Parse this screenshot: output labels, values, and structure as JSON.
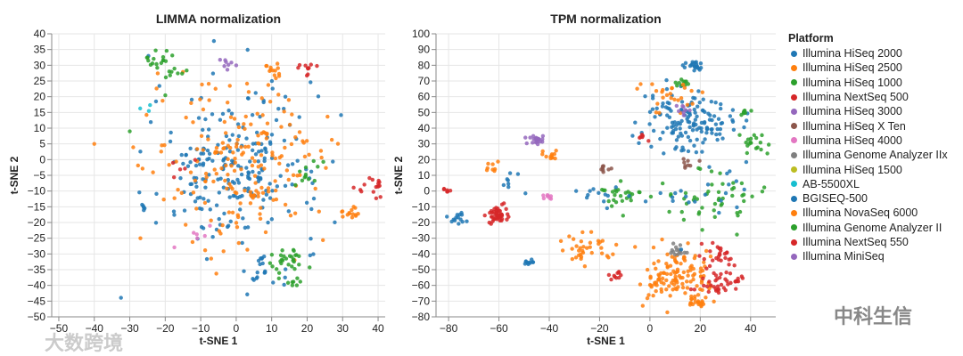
{
  "chart_data": [
    {
      "type": "scatter",
      "title": "LIMMA normalization",
      "xlabel": "t-SNE 1",
      "ylabel": "t-SNE 2",
      "xlim": [
        -52,
        42
      ],
      "ylim": [
        -50,
        40
      ],
      "xticks": [
        -50,
        -40,
        -30,
        -20,
        -10,
        0,
        10,
        20,
        30,
        40
      ],
      "yticks": [
        40,
        35,
        30,
        25,
        20,
        15,
        10,
        5,
        0,
        -5,
        -10,
        -15,
        -20,
        -25,
        -30,
        -35,
        -40,
        -45,
        -50
      ],
      "grid": true,
      "clusters": [
        {
          "s": 0,
          "cx": 0,
          "cy": -2,
          "sd": 12,
          "n": 230
        },
        {
          "s": 1,
          "cx": 2,
          "cy": -2,
          "sd": 13,
          "n": 200
        },
        {
          "s": 2,
          "cx": -20,
          "cy": 30,
          "sd": 3,
          "n": 25
        },
        {
          "s": 1,
          "cx": 11,
          "cy": 28,
          "sd": 2,
          "n": 14
        },
        {
          "s": 3,
          "cx": 20,
          "cy": 28,
          "sd": 1.5,
          "n": 10
        },
        {
          "s": 1,
          "cx": 32,
          "cy": -17,
          "sd": 1.5,
          "n": 14
        },
        {
          "s": 3,
          "cx": 38,
          "cy": -9,
          "sd": 2,
          "n": 16
        },
        {
          "s": 2,
          "cx": 14,
          "cy": -32,
          "sd": 3,
          "n": 30
        },
        {
          "s": 0,
          "cx": 7,
          "cy": -35,
          "sd": 3,
          "n": 20
        },
        {
          "s": 4,
          "cx": -2,
          "cy": 31,
          "sd": 1.2,
          "n": 8
        },
        {
          "s": 2,
          "cx": 17,
          "cy": -39,
          "sd": 0.8,
          "n": 6
        },
        {
          "s": 0,
          "cx": -26,
          "cy": -15,
          "sd": 1,
          "n": 5
        },
        {
          "s": 6,
          "cx": -10,
          "cy": -27,
          "sd": 3,
          "n": 6
        },
        {
          "s": 9,
          "cx": -25,
          "cy": 17,
          "sd": 1,
          "n": 3
        },
        {
          "s": 2,
          "cx": 21,
          "cy": -5,
          "sd": 3,
          "n": 12
        },
        {
          "s": 3,
          "cx": -17,
          "cy": -2,
          "sd": 2,
          "n": 5
        }
      ],
      "outliers": [
        [
          -40,
          5,
          1
        ],
        [
          -53,
          -44,
          1
        ],
        [
          -30,
          9,
          2
        ],
        [
          -27,
          -25,
          1
        ]
      ]
    },
    {
      "type": "scatter",
      "title": "TPM normalization",
      "xlabel": "t-SNE 1",
      "ylabel": "t-SNE 2",
      "xlim": [
        -85,
        50
      ],
      "ylim": [
        -80,
        100
      ],
      "xticks": [
        -80,
        -60,
        -40,
        -20,
        0,
        20,
        40
      ],
      "yticks": [
        100,
        90,
        80,
        70,
        60,
        50,
        40,
        30,
        20,
        10,
        0,
        -10,
        -20,
        -30,
        -40,
        -50,
        -60,
        -70,
        -80
      ],
      "grid": true,
      "clusters": [
        {
          "s": 0,
          "cx": 15,
          "cy": 45,
          "sd": 9,
          "n": 140
        },
        {
          "s": 0,
          "cx": 17,
          "cy": 80,
          "sd": 2,
          "n": 20
        },
        {
          "s": 2,
          "cx": 12,
          "cy": 68,
          "sd": 1.5,
          "n": 10
        },
        {
          "s": 2,
          "cx": 42,
          "cy": 32,
          "sd": 3,
          "n": 18
        },
        {
          "s": 2,
          "cx": 38,
          "cy": 50,
          "sd": 1,
          "n": 8
        },
        {
          "s": 1,
          "cx": -40,
          "cy": 23,
          "sd": 1.5,
          "n": 12
        },
        {
          "s": 4,
          "cx": -45,
          "cy": 32,
          "sd": 2,
          "n": 20
        },
        {
          "s": 3,
          "cx": -60,
          "cy": -15,
          "sd": 2.5,
          "n": 45
        },
        {
          "s": 0,
          "cx": -77,
          "cy": -18,
          "sd": 2,
          "n": 14
        },
        {
          "s": 3,
          "cx": -81,
          "cy": 1,
          "sd": 1,
          "n": 6
        },
        {
          "s": 1,
          "cx": 10,
          "cy": -55,
          "sd": 8,
          "n": 120
        },
        {
          "s": 3,
          "cx": 28,
          "cy": -58,
          "sd": 4,
          "n": 40
        },
        {
          "s": 1,
          "cx": 20,
          "cy": -70,
          "sd": 2,
          "n": 20
        },
        {
          "s": 7,
          "cx": 12,
          "cy": -38,
          "sd": 2,
          "n": 15
        },
        {
          "s": 3,
          "cx": -14,
          "cy": -53,
          "sd": 1.5,
          "n": 10
        },
        {
          "s": 2,
          "cx": 25,
          "cy": -5,
          "sd": 10,
          "n": 50
        },
        {
          "s": 0,
          "cx": 20,
          "cy": -2,
          "sd": 12,
          "n": 25
        },
        {
          "s": 2,
          "cx": -12,
          "cy": -3,
          "sd": 4,
          "n": 25
        },
        {
          "s": 0,
          "cx": -20,
          "cy": -2,
          "sd": 4,
          "n": 12
        },
        {
          "s": 5,
          "cx": -17,
          "cy": 15,
          "sd": 1.5,
          "n": 8
        },
        {
          "s": 1,
          "cx": -25,
          "cy": -37,
          "sd": 5,
          "n": 35
        },
        {
          "s": 0,
          "cx": -48,
          "cy": -45,
          "sd": 1,
          "n": 10
        },
        {
          "s": 6,
          "cx": -40,
          "cy": -3,
          "sd": 1.5,
          "n": 8
        },
        {
          "s": 1,
          "cx": 5,
          "cy": 62,
          "sd": 6,
          "n": 25
        },
        {
          "s": 3,
          "cx": 28,
          "cy": -40,
          "sd": 4,
          "n": 25
        },
        {
          "s": 4,
          "cx": 12,
          "cy": 52,
          "sd": 2,
          "n": 8
        },
        {
          "s": 5,
          "cx": 15,
          "cy": 18,
          "sd": 2,
          "n": 8
        },
        {
          "s": 3,
          "cx": -3,
          "cy": 35,
          "sd": 2,
          "n": 6
        },
        {
          "s": 0,
          "cx": -55,
          "cy": 5,
          "sd": 3,
          "n": 8
        },
        {
          "s": 1,
          "cx": -62,
          "cy": 15,
          "sd": 2,
          "n": 8
        }
      ],
      "outliers": []
    }
  ],
  "legend": {
    "title": "Platform",
    "items": [
      {
        "label": "Illumina HiSeq 2000",
        "color": "#1f77b4"
      },
      {
        "label": "Illumina HiSeq 2500",
        "color": "#ff7f0e"
      },
      {
        "label": "Illumina HiSeq 1000",
        "color": "#2ca02c"
      },
      {
        "label": "Illumina NextSeq 500",
        "color": "#d62728"
      },
      {
        "label": "Illumina HiSeq 3000",
        "color": "#9467bd"
      },
      {
        "label": "Illumina HiSeq X Ten",
        "color": "#8c564b"
      },
      {
        "label": "Illumina HiSeq 4000",
        "color": "#e377c2"
      },
      {
        "label": "Illumina Genome Analyzer IIx",
        "color": "#7f7f7f"
      },
      {
        "label": "Illumina HiSeq 1500",
        "color": "#bcbd22"
      },
      {
        "label": "AB-5500XL",
        "color": "#17becf"
      },
      {
        "label": "BGISEQ-500",
        "color": "#1f77b4"
      },
      {
        "label": "Illumina NovaSeq 6000",
        "color": "#ff7f0e"
      },
      {
        "label": "Illumina Genome Analyzer II",
        "color": "#2ca02c"
      },
      {
        "label": "Illumina NextSeq 550",
        "color": "#d62728"
      },
      {
        "label": "Illumina MiniSeq",
        "color": "#9467bd"
      }
    ]
  },
  "watermarks": {
    "left": "大数跨境",
    "right": "中科生信"
  }
}
